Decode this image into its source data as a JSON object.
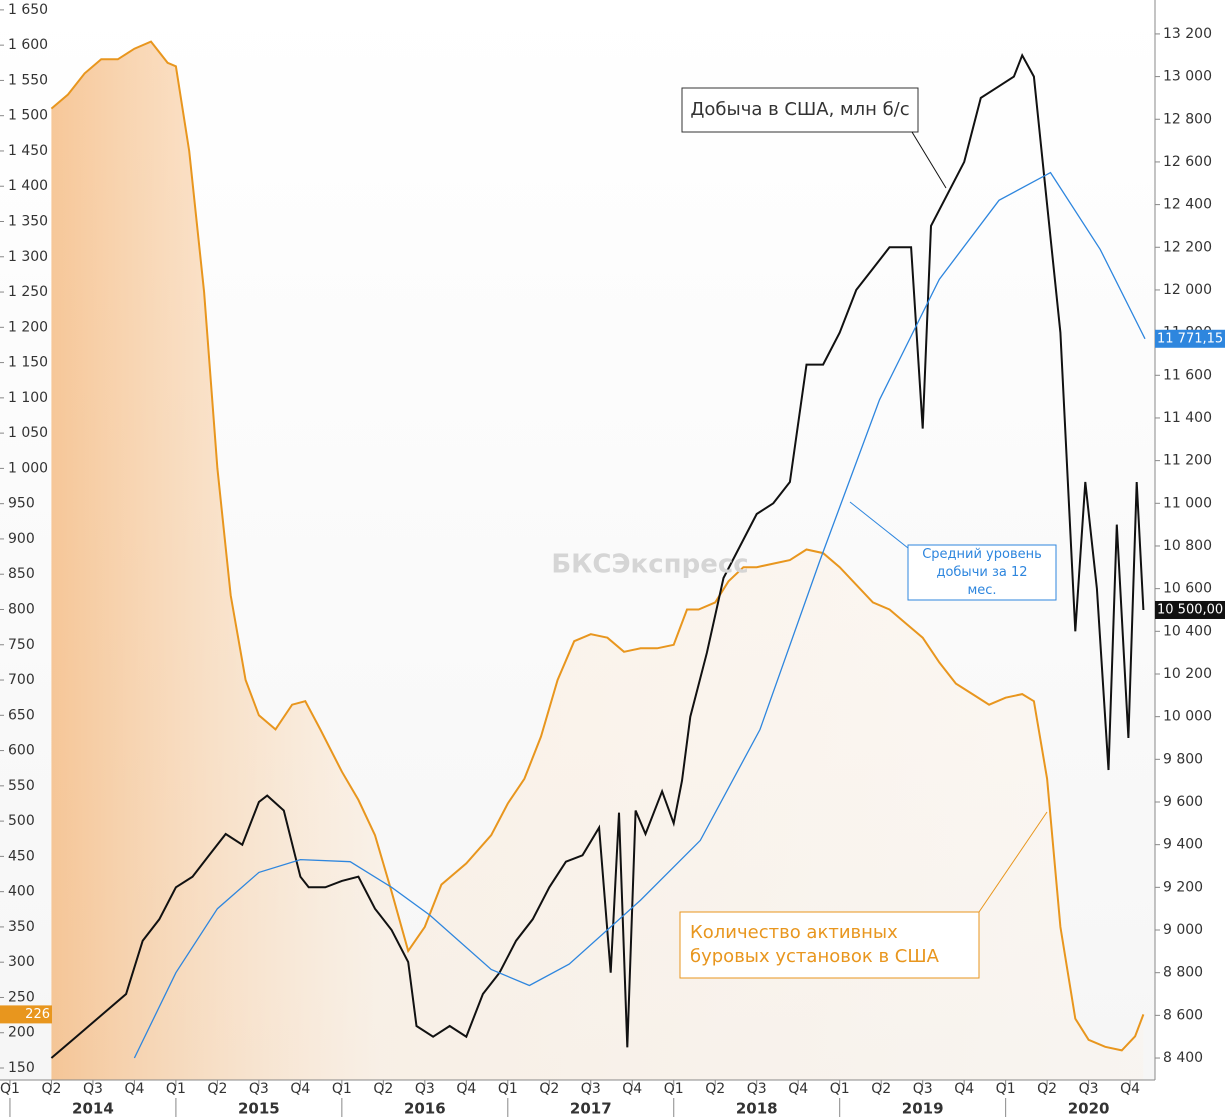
{
  "chart_data": {
    "type": "line",
    "xlim": [
      2013.94,
      2020.9
    ],
    "ylim": [
      133,
      1664
    ],
    "y2lim": [
      8297,
      13359
    ],
    "yticks": [
      150,
      200,
      250,
      300,
      350,
      400,
      450,
      {
        "value": 500,
        "label": "500"
      },
      550,
      600,
      650,
      700,
      750,
      800,
      850,
      900,
      950,
      {
        "value": 1000,
        "label": "1 000"
      },
      {
        "value": 1050,
        "label": "1 050"
      },
      {
        "value": 1100,
        "label": "1 100"
      },
      {
        "value": 1150,
        "label": "1 150"
      },
      {
        "value": 1200,
        "label": "1 200"
      },
      {
        "value": 1250,
        "label": "1 250"
      },
      {
        "value": 1300,
        "label": "1 300"
      },
      {
        "value": 1350,
        "label": "1 350"
      },
      {
        "value": 1400,
        "label": "1 400"
      },
      {
        "value": 1450,
        "label": "1 450"
      },
      {
        "value": 1500,
        "label": "1 500"
      },
      {
        "value": 1550,
        "label": "1 550"
      },
      {
        "value": 1600,
        "label": "1 600"
      },
      {
        "value": 1650,
        "label": "1 650"
      }
    ],
    "y2ticks": [
      {
        "value": 8400,
        "label": "8 400"
      },
      {
        "value": 8600,
        "label": "8 600"
      },
      {
        "value": 8800,
        "label": "8 800"
      },
      {
        "value": 9000,
        "label": "9 000"
      },
      {
        "value": 9200,
        "label": "9 200"
      },
      {
        "value": 9400,
        "label": "9 400"
      },
      {
        "value": 9600,
        "label": "9 600"
      },
      {
        "value": 9800,
        "label": "9 800"
      },
      {
        "value": 10000,
        "label": "10 000"
      },
      {
        "value": 10200,
        "label": "10 200"
      },
      {
        "value": 10400,
        "label": "10 400"
      },
      {
        "value": 10600,
        "label": "10 600"
      },
      {
        "value": 10800,
        "label": "10 800"
      },
      {
        "value": 11000,
        "label": "11 000"
      },
      {
        "value": 11200,
        "label": "11 200"
      },
      {
        "value": 11400,
        "label": "11 400"
      },
      {
        "value": 11600,
        "label": "11 600"
      },
      {
        "value": 11800,
        "label": "11 800"
      },
      {
        "value": 12000,
        "label": "12 000"
      },
      {
        "value": 12200,
        "label": "12 200"
      },
      {
        "value": 12400,
        "label": "12 400"
      },
      {
        "value": 12600,
        "label": "12 600"
      },
      {
        "value": 12800,
        "label": "12 800"
      },
      {
        "value": 13000,
        "label": "13 000"
      },
      {
        "value": 13200,
        "label": "13 200"
      }
    ],
    "xticks": [
      {
        "value": 2014.0,
        "label": "Q1"
      },
      {
        "value": 2014.25,
        "label": "Q2"
      },
      {
        "value": 2014.5,
        "label": "Q3"
      },
      {
        "value": 2014.75,
        "label": "Q4"
      },
      {
        "value": 2015.0,
        "label": "Q1"
      },
      {
        "value": 2015.25,
        "label": "Q2"
      },
      {
        "value": 2015.5,
        "label": "Q3"
      },
      {
        "value": 2015.75,
        "label": "Q4"
      },
      {
        "value": 2016.0,
        "label": "Q1"
      },
      {
        "value": 2016.25,
        "label": "Q2"
      },
      {
        "value": 2016.5,
        "label": "Q3"
      },
      {
        "value": 2016.75,
        "label": "Q4"
      },
      {
        "value": 2017.0,
        "label": "Q1"
      },
      {
        "value": 2017.25,
        "label": "Q2"
      },
      {
        "value": 2017.5,
        "label": "Q3"
      },
      {
        "value": 2017.75,
        "label": "Q4"
      },
      {
        "value": 2018.0,
        "label": "Q1"
      },
      {
        "value": 2018.25,
        "label": "Q2"
      },
      {
        "value": 2018.5,
        "label": "Q3"
      },
      {
        "value": 2018.75,
        "label": "Q4"
      },
      {
        "value": 2019.0,
        "label": "Q1"
      },
      {
        "value": 2019.25,
        "label": "Q2"
      },
      {
        "value": 2019.5,
        "label": "Q3"
      },
      {
        "value": 2019.75,
        "label": "Q4"
      },
      {
        "value": 2020.0,
        "label": "Q1"
      },
      {
        "value": 2020.25,
        "label": "Q2"
      },
      {
        "value": 2020.5,
        "label": "Q3"
      },
      {
        "value": 2020.75,
        "label": "Q4"
      }
    ],
    "year_labels": [
      {
        "value": 2014.5,
        "label": "2014"
      },
      {
        "value": 2015.5,
        "label": "2015"
      },
      {
        "value": 2016.5,
        "label": "2016"
      },
      {
        "value": 2017.5,
        "label": "2017"
      },
      {
        "value": 2018.5,
        "label": "2018"
      },
      {
        "value": 2019.5,
        "label": "2019"
      },
      {
        "value": 2020.5,
        "label": "2020"
      }
    ],
    "watermark": "БКСЭкспресс",
    "series": [
      {
        "name": "Количество активных буровых установок в США",
        "color": "#e8961e",
        "axis": "y",
        "fill": true,
        "end_label": "226",
        "x": [
          2014.25,
          2014.35,
          2014.45,
          2014.55,
          2014.65,
          2014.75,
          2014.85,
          2014.95,
          2015.0,
          2015.08,
          2015.17,
          2015.25,
          2015.33,
          2015.42,
          2015.5,
          2015.6,
          2015.7,
          2015.78,
          2015.87,
          2016.0,
          2016.1,
          2016.2,
          2016.3,
          2016.4,
          2016.5,
          2016.6,
          2016.75,
          2016.9,
          2017.0,
          2017.1,
          2017.2,
          2017.3,
          2017.4,
          2017.5,
          2017.6,
          2017.7,
          2017.8,
          2017.9,
          2018.0,
          2018.08,
          2018.15,
          2018.25,
          2018.33,
          2018.42,
          2018.5,
          2018.6,
          2018.7,
          2018.8,
          2018.9,
          2019.0,
          2019.1,
          2019.2,
          2019.3,
          2019.4,
          2019.5,
          2019.6,
          2019.7,
          2019.8,
          2019.9,
          2020.0,
          2020.1,
          2020.17,
          2020.25,
          2020.33,
          2020.42,
          2020.5,
          2020.6,
          2020.7,
          2020.78,
          2020.83
        ],
        "values": [
          1510,
          1530,
          1560,
          1580,
          1580,
          1595,
          1605,
          1575,
          1570,
          1450,
          1250,
          1000,
          820,
          700,
          650,
          630,
          665,
          670,
          630,
          570,
          530,
          480,
          400,
          316,
          350,
          410,
          440,
          480,
          525,
          560,
          620,
          700,
          755,
          765,
          760,
          740,
          745,
          745,
          750,
          800,
          800,
          810,
          840,
          860,
          860,
          865,
          870,
          885,
          880,
          860,
          835,
          810,
          800,
          780,
          760,
          725,
          695,
          680,
          665,
          675,
          680,
          670,
          560,
          350,
          220,
          190,
          180,
          175,
          195,
          226
        ]
      },
      {
        "name": "Добыча в США, млн б/с",
        "color": "#111111",
        "axis": "y2",
        "end_label": "10 500,00",
        "x": [
          2014.25,
          2014.4,
          2014.55,
          2014.7,
          2014.8,
          2014.9,
          2015.0,
          2015.1,
          2015.2,
          2015.3,
          2015.4,
          2015.5,
          2015.55,
          2015.65,
          2015.75,
          2015.8,
          2015.9,
          2016.0,
          2016.1,
          2016.2,
          2016.3,
          2016.4,
          2016.45,
          2016.55,
          2016.65,
          2016.75,
          2016.85,
          2016.95,
          2017.05,
          2017.15,
          2017.25,
          2017.35,
          2017.45,
          2017.55,
          2017.62,
          2017.67,
          2017.72,
          2017.77,
          2017.83,
          2017.93,
          2018.0,
          2018.05,
          2018.1,
          2018.2,
          2018.3,
          2018.4,
          2018.5,
          2018.6,
          2018.7,
          2018.8,
          2018.9,
          2019.0,
          2019.1,
          2019.2,
          2019.3,
          2019.43,
          2019.5,
          2019.55,
          2019.65,
          2019.75,
          2019.85,
          2019.95,
          2020.05,
          2020.1,
          2020.17,
          2020.25,
          2020.33,
          2020.42,
          2020.48,
          2020.55,
          2020.62,
          2020.67,
          2020.74,
          2020.79,
          2020.83
        ],
        "values": [
          8400,
          8500,
          8600,
          8700,
          8950,
          9050,
          9200,
          9250,
          9350,
          9450,
          9400,
          9600,
          9630,
          9560,
          9250,
          9200,
          9200,
          9230,
          9250,
          9100,
          9000,
          8850,
          8550,
          8500,
          8550,
          8500,
          8700,
          8800,
          8950,
          9050,
          9200,
          9320,
          9350,
          9480,
          8800,
          9550,
          8450,
          9560,
          9450,
          9650,
          9500,
          9700,
          10000,
          10300,
          10650,
          10800,
          10950,
          11000,
          11100,
          11650,
          11650,
          11800,
          12000,
          12100,
          12200,
          12200,
          11350,
          12300,
          12450,
          12600,
          12900,
          12950,
          13000,
          13100,
          13000,
          12400,
          11800,
          10400,
          11100,
          10600,
          9750,
          10900,
          9900,
          11100,
          10500
        ]
      },
      {
        "name": "Средний уровень добычи за 12 мес.",
        "color": "#2e86de",
        "axis": "y2",
        "end_label": "11 771,15",
        "x": [
          2014.75,
          2015.0,
          2015.25,
          2015.5,
          2015.75,
          2016.05,
          2016.3,
          2016.53,
          2016.9,
          2017.13,
          2017.37,
          2017.8,
          2018.16,
          2018.52,
          2018.88,
          2019.24,
          2019.6,
          2019.96,
          2020.27,
          2020.57,
          2020.84
        ],
        "values": [
          8400,
          8800,
          9100,
          9270,
          9330,
          9320,
          9200,
          9070,
          8815,
          8740,
          8840,
          9140,
          9420,
          9940,
          10730,
          11485,
          12050,
          12420,
          12550,
          12190,
          11771.15
        ]
      }
    ]
  }
}
